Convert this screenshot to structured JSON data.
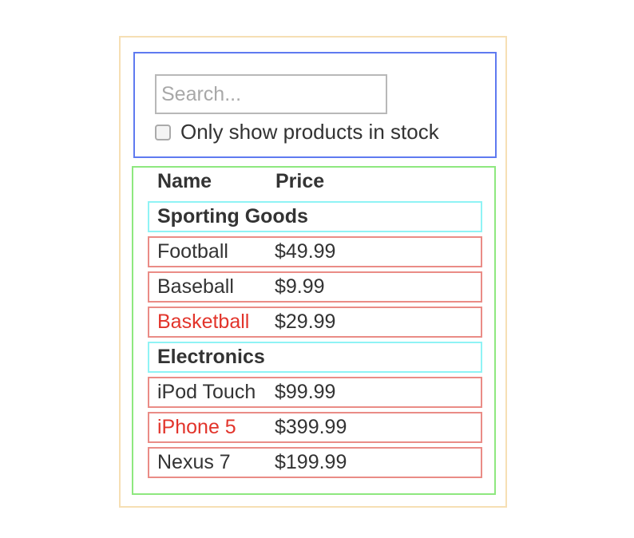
{
  "search": {
    "placeholder": "Search...",
    "value": "",
    "stock_label": "Only show products in stock",
    "stock_checked": false
  },
  "table": {
    "header_name": "Name",
    "header_price": "Price",
    "categories": [
      {
        "name": "Sporting Goods",
        "products": [
          {
            "name": "Football",
            "price": "$49.99",
            "in_stock": true
          },
          {
            "name": "Baseball",
            "price": "$9.99",
            "in_stock": true
          },
          {
            "name": "Basketball",
            "price": "$29.99",
            "in_stock": false
          }
        ]
      },
      {
        "name": "Electronics",
        "products": [
          {
            "name": "iPod Touch",
            "price": "$99.99",
            "in_stock": true
          },
          {
            "name": "iPhone 5",
            "price": "$399.99",
            "in_stock": false
          },
          {
            "name": "Nexus 7",
            "price": "$199.99",
            "in_stock": true
          }
        ]
      }
    ]
  },
  "colors": {
    "outer_border": "#f6dfb4",
    "searchbar_border": "#5f7af0",
    "table_border": "#8ee87f",
    "category_border": "#8ff3f5",
    "product_border": "#ea8c86",
    "out_of_stock_text": "#e2342b"
  }
}
